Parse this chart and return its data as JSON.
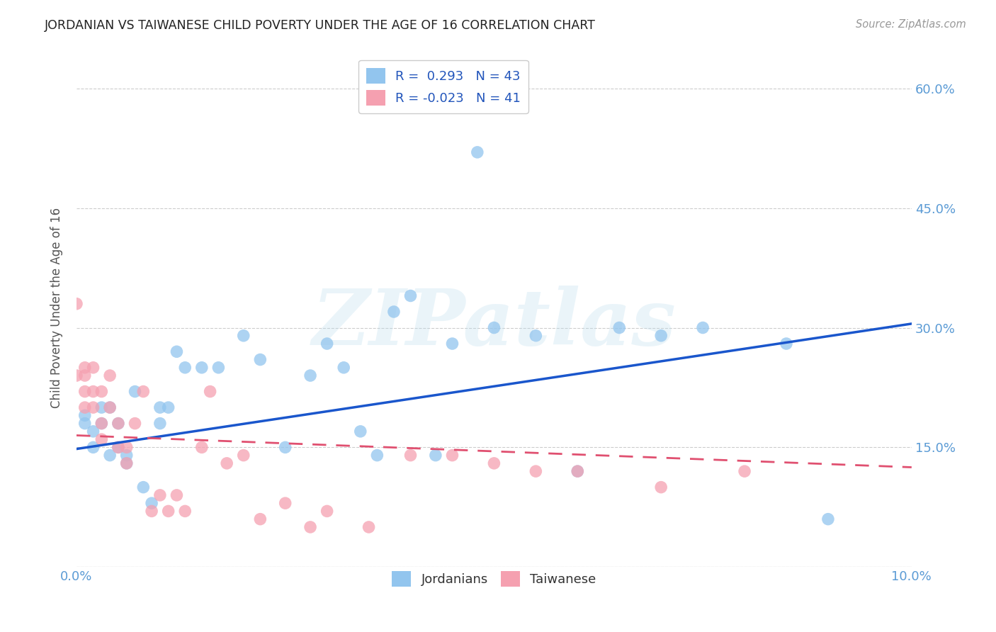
{
  "title": "JORDANIAN VS TAIWANESE CHILD POVERTY UNDER THE AGE OF 16 CORRELATION CHART",
  "source": "Source: ZipAtlas.com",
  "ylabel": "Child Poverty Under the Age of 16",
  "xlim": [
    0.0,
    0.1
  ],
  "ylim": [
    0.0,
    0.65
  ],
  "yticks": [
    0.0,
    0.15,
    0.3,
    0.45,
    0.6
  ],
  "ytick_labels": [
    "",
    "15.0%",
    "30.0%",
    "45.0%",
    "60.0%"
  ],
  "xticks": [
    0.0,
    0.02,
    0.04,
    0.06,
    0.08,
    0.1
  ],
  "xtick_labels": [
    "0.0%",
    "",
    "",
    "",
    "",
    "10.0%"
  ],
  "jordanian_color": "#92C5EE",
  "taiwanese_color": "#F5A0B0",
  "jordanian_R": 0.293,
  "jordanian_N": 43,
  "taiwanese_R": -0.023,
  "taiwanese_N": 41,
  "trend_blue": "#1A56CC",
  "trend_pink": "#E05070",
  "watermark": "ZIPatlas",
  "background_color": "#FFFFFF",
  "tick_color": "#5B9BD5",
  "jordanian_x": [
    0.001,
    0.001,
    0.002,
    0.002,
    0.003,
    0.003,
    0.004,
    0.004,
    0.005,
    0.005,
    0.006,
    0.006,
    0.007,
    0.008,
    0.009,
    0.01,
    0.01,
    0.011,
    0.012,
    0.013,
    0.015,
    0.017,
    0.02,
    0.022,
    0.025,
    0.028,
    0.03,
    0.032,
    0.034,
    0.036,
    0.038,
    0.04,
    0.043,
    0.045,
    0.048,
    0.05,
    0.055,
    0.06,
    0.065,
    0.07,
    0.075,
    0.085,
    0.09
  ],
  "jordanian_y": [
    0.19,
    0.18,
    0.17,
    0.15,
    0.2,
    0.18,
    0.14,
    0.2,
    0.15,
    0.18,
    0.14,
    0.13,
    0.22,
    0.1,
    0.08,
    0.18,
    0.2,
    0.2,
    0.27,
    0.25,
    0.25,
    0.25,
    0.29,
    0.26,
    0.15,
    0.24,
    0.28,
    0.25,
    0.17,
    0.14,
    0.32,
    0.34,
    0.14,
    0.28,
    0.52,
    0.3,
    0.29,
    0.12,
    0.3,
    0.29,
    0.3,
    0.28,
    0.06
  ],
  "taiwanese_x": [
    0.0,
    0.0,
    0.001,
    0.001,
    0.001,
    0.001,
    0.002,
    0.002,
    0.002,
    0.003,
    0.003,
    0.003,
    0.004,
    0.004,
    0.005,
    0.005,
    0.006,
    0.006,
    0.007,
    0.008,
    0.009,
    0.01,
    0.011,
    0.012,
    0.013,
    0.015,
    0.016,
    0.018,
    0.02,
    0.022,
    0.025,
    0.028,
    0.03,
    0.035,
    0.04,
    0.045,
    0.05,
    0.055,
    0.06,
    0.07,
    0.08
  ],
  "taiwanese_y": [
    0.33,
    0.24,
    0.25,
    0.22,
    0.24,
    0.2,
    0.25,
    0.22,
    0.2,
    0.18,
    0.22,
    0.16,
    0.2,
    0.24,
    0.18,
    0.15,
    0.15,
    0.13,
    0.18,
    0.22,
    0.07,
    0.09,
    0.07,
    0.09,
    0.07,
    0.15,
    0.22,
    0.13,
    0.14,
    0.06,
    0.08,
    0.05,
    0.07,
    0.05,
    0.14,
    0.14,
    0.13,
    0.12,
    0.12,
    0.1,
    0.12
  ],
  "blue_trend_x0": 0.0,
  "blue_trend_y0": 0.148,
  "blue_trend_x1": 0.1,
  "blue_trend_y1": 0.305,
  "pink_trend_x0": 0.0,
  "pink_trend_y0": 0.165,
  "pink_trend_x1": 0.1,
  "pink_trend_y1": 0.125
}
